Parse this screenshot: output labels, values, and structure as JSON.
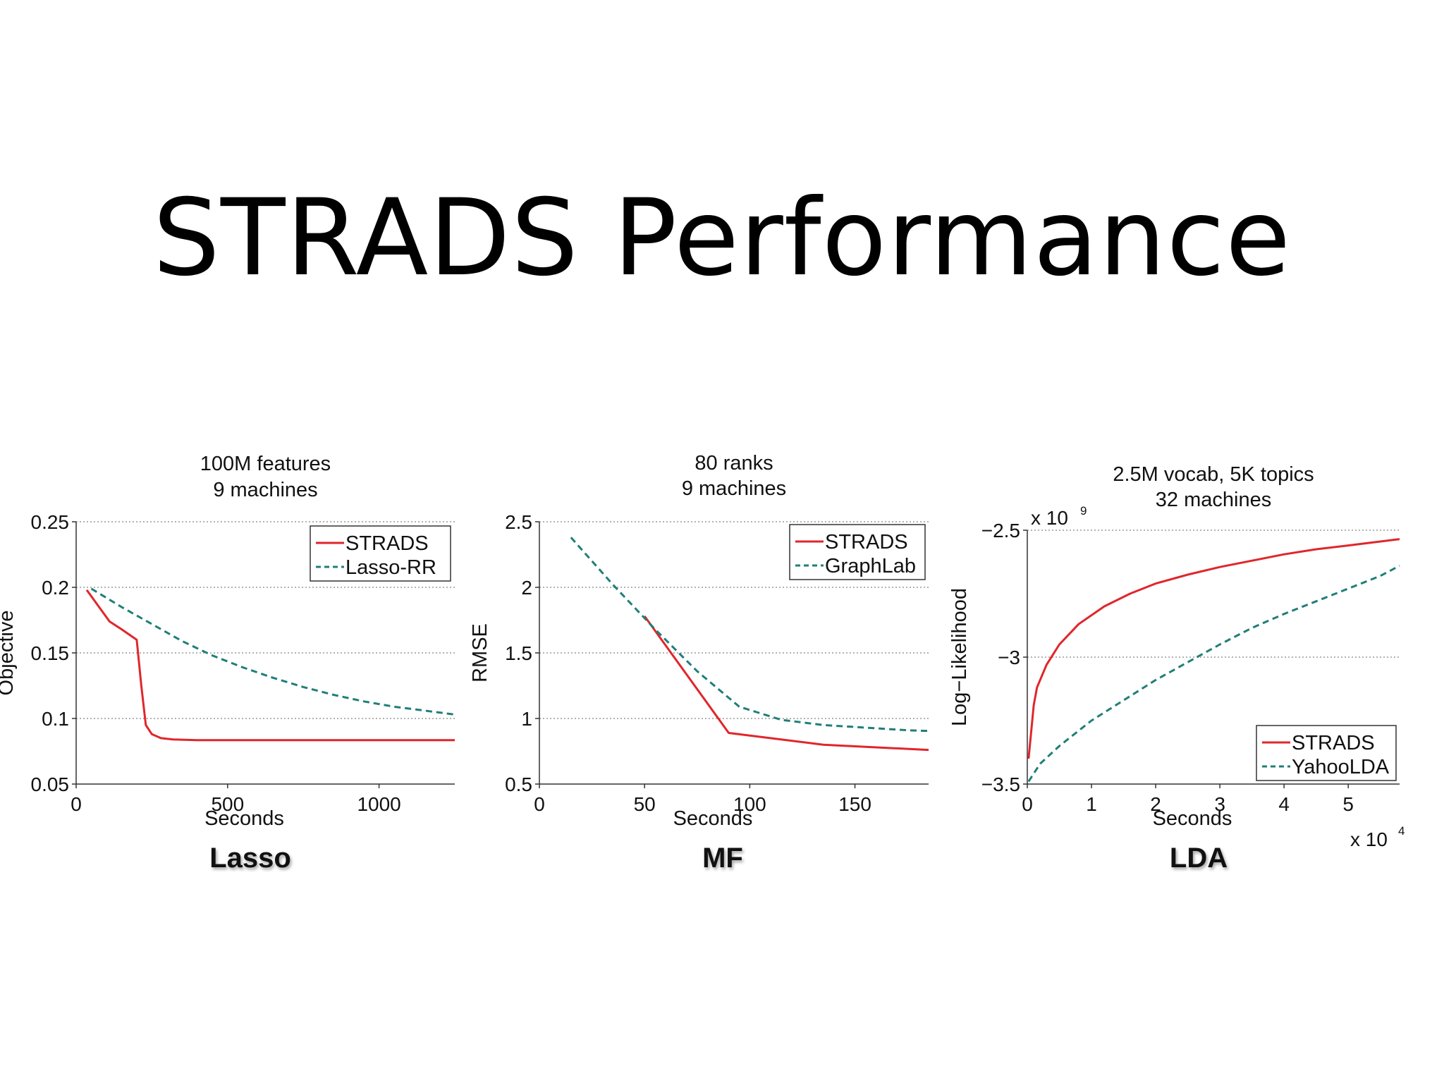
{
  "slide": {
    "title": "STRADS Performance"
  },
  "chart_data": [
    {
      "type": "line",
      "panel_label": "Lasso",
      "title": [
        "100M features",
        "9 machines"
      ],
      "xlabel": "Seconds",
      "ylabel": "Objective",
      "xlim": [
        0,
        1250
      ],
      "ylim": [
        0.05,
        0.25
      ],
      "xticks": [
        {
          "v": 0,
          "label": "0"
        },
        {
          "v": 500,
          "label": "500"
        },
        {
          "v": 1000,
          "label": "1000"
        }
      ],
      "yticks": [
        {
          "v": 0.05,
          "label": "0.05"
        },
        {
          "v": 0.1,
          "label": "0.1"
        },
        {
          "v": 0.15,
          "label": "0.15"
        },
        {
          "v": 0.2,
          "label": "0.2"
        },
        {
          "v": 0.25,
          "label": "0.25"
        }
      ],
      "grid": "horizontal-dotted",
      "legend_position": "top-right",
      "series": [
        {
          "name": "STRADS",
          "color": "#e0262b",
          "style": "solid",
          "x": [
            35,
            60,
            110,
            150,
            200,
            215,
            230,
            250,
            280,
            320,
            400,
            600,
            800,
            1000,
            1250
          ],
          "y": [
            0.198,
            0.19,
            0.174,
            0.168,
            0.16,
            0.125,
            0.095,
            0.088,
            0.085,
            0.084,
            0.0835,
            0.0835,
            0.0835,
            0.0835,
            0.0835
          ]
        },
        {
          "name": "Lasso-RR",
          "color": "#1f7f78",
          "style": "dashed",
          "x": [
            50,
            150,
            250,
            350,
            450,
            550,
            650,
            750,
            850,
            950,
            1050,
            1150,
            1250
          ],
          "y": [
            0.199,
            0.185,
            0.172,
            0.159,
            0.148,
            0.139,
            0.131,
            0.124,
            0.118,
            0.113,
            0.109,
            0.106,
            0.103
          ]
        }
      ]
    },
    {
      "type": "line",
      "panel_label": "MF",
      "title": [
        "80 ranks",
        "9 machines"
      ],
      "xlabel": "Seconds",
      "ylabel": "RMSE",
      "xlim": [
        0,
        185
      ],
      "ylim": [
        0.5,
        2.5
      ],
      "xticks": [
        {
          "v": 0,
          "label": "0"
        },
        {
          "v": 50,
          "label": "50"
        },
        {
          "v": 100,
          "label": "100"
        },
        {
          "v": 150,
          "label": "150"
        }
      ],
      "yticks": [
        {
          "v": 0.5,
          "label": "0.5"
        },
        {
          "v": 1,
          "label": "1"
        },
        {
          "v": 1.5,
          "label": "1.5"
        },
        {
          "v": 2,
          "label": "2"
        },
        {
          "v": 2.5,
          "label": "2.5"
        }
      ],
      "grid": "horizontal-dotted",
      "legend_position": "top-right",
      "series": [
        {
          "name": "STRADS",
          "color": "#e0262b",
          "style": "solid",
          "x": [
            50,
            90,
            135,
            185
          ],
          "y": [
            1.78,
            0.89,
            0.8,
            0.76
          ]
        },
        {
          "name": "GraphLab",
          "color": "#1f7f78",
          "style": "dashed",
          "x": [
            15,
            35,
            55,
            75,
            95,
            115,
            135,
            155,
            175,
            185
          ],
          "y": [
            2.38,
            2.02,
            1.68,
            1.36,
            1.09,
            0.99,
            0.95,
            0.93,
            0.91,
            0.905
          ]
        }
      ]
    },
    {
      "type": "line",
      "panel_label": "LDA",
      "title": [
        "2.5M vocab, 5K topics",
        "32 machines"
      ],
      "xlabel": "Seconds",
      "ylabel": "Log−Likelihood",
      "x_multiplier": "x 10",
      "x_multiplier_exp": "4",
      "y_multiplier": "x 10",
      "y_multiplier_exp": "9",
      "xlim": [
        0,
        5.8
      ],
      "ylim": [
        -3.5,
        -2.5
      ],
      "xticks": [
        {
          "v": 0,
          "label": "0"
        },
        {
          "v": 1,
          "label": "1"
        },
        {
          "v": 2,
          "label": "2"
        },
        {
          "v": 3,
          "label": "3"
        },
        {
          "v": 4,
          "label": "4"
        },
        {
          "v": 5,
          "label": "5"
        }
      ],
      "yticks": [
        {
          "v": -3.5,
          "label": "−3.5"
        },
        {
          "v": -3,
          "label": "−3"
        },
        {
          "v": -2.5,
          "label": "−2.5"
        }
      ],
      "grid": "horizontal-dotted",
      "legend_position": "bottom-right",
      "series": [
        {
          "name": "STRADS",
          "color": "#e0262b",
          "style": "solid",
          "x": [
            0.02,
            0.05,
            0.1,
            0.15,
            0.2,
            0.3,
            0.5,
            0.8,
            1.2,
            1.6,
            2,
            2.5,
            3,
            3.5,
            4,
            4.5,
            5,
            5.8
          ],
          "y": [
            -3.4,
            -3.32,
            -3.19,
            -3.12,
            -3.09,
            -3.03,
            -2.95,
            -2.87,
            -2.8,
            -2.75,
            -2.71,
            -2.675,
            -2.645,
            -2.62,
            -2.595,
            -2.575,
            -2.56,
            -2.535
          ]
        },
        {
          "name": "YahooLDA",
          "color": "#1f7f78",
          "style": "dashed",
          "x": [
            0.02,
            0.2,
            0.5,
            1,
            1.5,
            2,
            2.5,
            3,
            3.5,
            4,
            4.5,
            5,
            5.5,
            5.8
          ],
          "y": [
            -3.49,
            -3.42,
            -3.35,
            -3.25,
            -3.17,
            -3.09,
            -3.02,
            -2.95,
            -2.885,
            -2.83,
            -2.78,
            -2.73,
            -2.68,
            -2.64
          ]
        }
      ]
    }
  ]
}
